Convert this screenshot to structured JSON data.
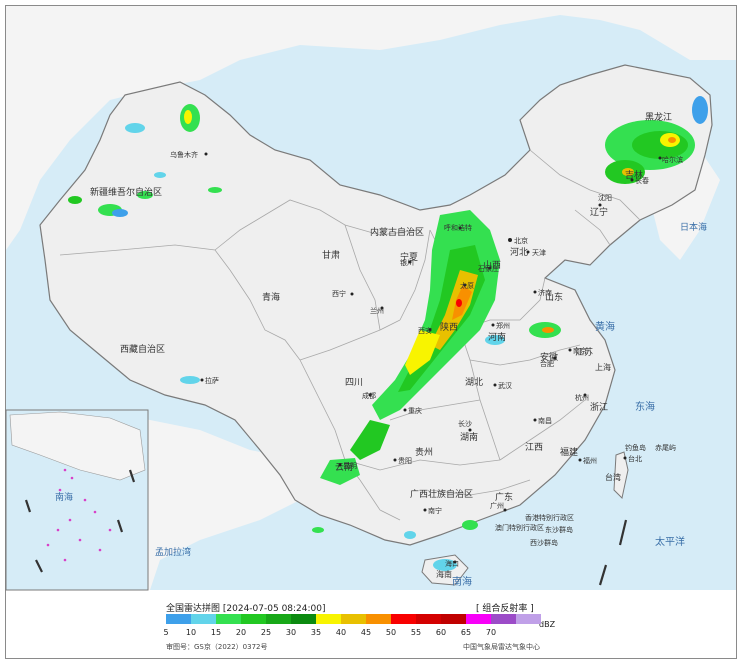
{
  "map": {
    "title": "全国雷达拼图",
    "timestamp": "[2024-07-05 08:24:00]",
    "product_type": "[ 组合反射率 ]",
    "unit": "dBZ",
    "approval_no": "审图号：GS京（2022）0372号",
    "provider": "中国气象局雷达气象中心",
    "colors": {
      "sea": "#d6ecf7",
      "land": "#f0f0f0",
      "border": "#9a9a9a",
      "frame": "#8a8a8a"
    }
  },
  "legend": {
    "items": [
      {
        "label": "5",
        "color": "#3ea0ea"
      },
      {
        "label": "10",
        "color": "#62d4ea"
      },
      {
        "label": "15",
        "color": "#34e050"
      },
      {
        "label": "20",
        "color": "#22c822"
      },
      {
        "label": "25",
        "color": "#18a818"
      },
      {
        "label": "30",
        "color": "#0c8a10"
      },
      {
        "label": "35",
        "color": "#f8f400"
      },
      {
        "label": "40",
        "color": "#e8c000"
      },
      {
        "label": "45",
        "color": "#f89000"
      },
      {
        "label": "50",
        "color": "#f80000"
      },
      {
        "label": "55",
        "color": "#d40000"
      },
      {
        "label": "60",
        "color": "#c00000"
      },
      {
        "label": "65",
        "color": "#f800f8"
      },
      {
        "label": "70",
        "color": "#9c4cc8"
      },
      {
        "label": "",
        "color": "#c0a0e8"
      }
    ]
  },
  "regions": {
    "heilongjiang": "黑龙江",
    "jilin": "吉林",
    "liaoning": "辽宁",
    "inner_mongolia": "内蒙古自治区",
    "xinjiang": "新疆维吾尔自治区",
    "xizang": "西藏自治区",
    "qinghai": "青海",
    "gansu": "甘肃",
    "ningxia": "宁夏",
    "shaanxi": "陕西",
    "shanxi": "山西",
    "hebei": "河北",
    "shandong": "山东",
    "henan": "河南",
    "jiangsu": "江苏",
    "anhui": "安徽",
    "hubei": "湖北",
    "sichuan": "四川",
    "chongqing": "重庆",
    "hunan": "湖南",
    "jiangxi": "江西",
    "zhejiang": "浙江",
    "fujian": "福建",
    "guizhou": "贵州",
    "yunnan": "云南",
    "guangxi": "广西壮族自治区",
    "guangdong": "广东",
    "hainan": "海南",
    "taiwan": "台湾",
    "shanghai": "上海",
    "hongkong": "香港特别行政区",
    "macau": "澳门特别行政区"
  },
  "cities": {
    "urumqi": "乌鲁木齐",
    "lhasa": "拉萨",
    "xining": "西宁",
    "lanzhou": "兰州",
    "yinchuan": "银川",
    "hohhot": "呼和浩特",
    "beijing": "北京",
    "tianjin": "天津",
    "shijiazhuang": "石家庄",
    "taiyuan": "太原",
    "jinan": "济南",
    "zhengzhou": "郑州",
    "xian": "西安",
    "chengdu": "成都",
    "chongqing": "重庆",
    "guiyang": "贵阳",
    "kunming": "昆明",
    "changsha": "长沙",
    "wuhan": "武汉",
    "hefei": "合肥",
    "nanjing": "南京",
    "hangzhou": "杭州",
    "nanchang": "南昌",
    "fuzhou": "福州",
    "taipei": "台北",
    "guangzhou": "广州",
    "nanning": "南宁",
    "haikou": "海口",
    "shenyang": "沈阳",
    "changchun": "长春",
    "harbin": "哈尔滨",
    "macau": "澳门",
    "hongkong": "香港"
  },
  "seas": {
    "yellow_sea": "黄海",
    "east_sea": "东海",
    "south_sea": "南海",
    "pacific": "太平洋",
    "japan_sea": "日本海",
    "bengal": "孟加拉湾"
  },
  "islands": {
    "diaoyu": "钓鱼岛",
    "chiwei": "赤尾屿",
    "dongsha": "东沙群岛",
    "xisha": "西沙群岛"
  }
}
